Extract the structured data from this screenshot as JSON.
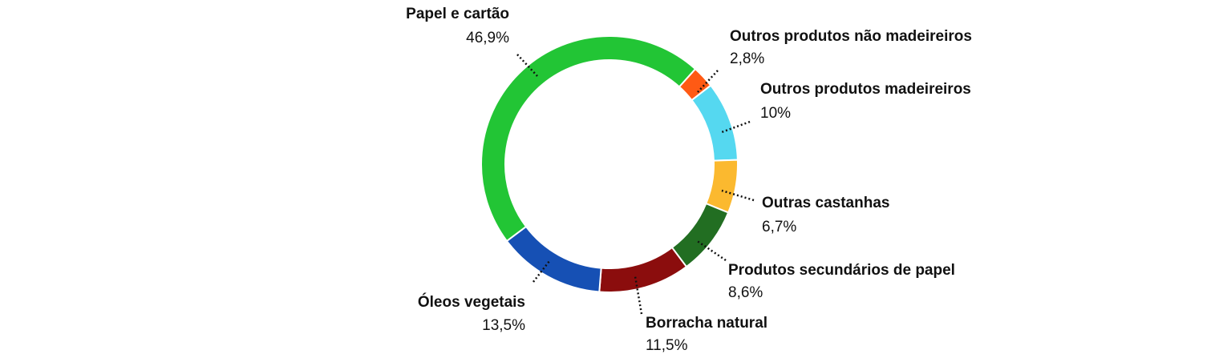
{
  "chart_data": {
    "type": "donut",
    "categories": [
      "Outros produtos não madeireiros",
      "Outros produtos madeireiros",
      "Outras castanhas",
      "Produtos secundários de papel",
      "Borracha natural",
      "Óleos vegetais",
      "Papel e cartão"
    ],
    "values": [
      2.8,
      10,
      6.7,
      8.6,
      11.5,
      13.5,
      46.9
    ],
    "value_labels": [
      "2,8%",
      "10%",
      "6,7%",
      "8,6%",
      "11,5%",
      "13,5%",
      "46,9%"
    ],
    "colors": [
      "#ff5a14",
      "#55d8f0",
      "#fbb92f",
      "#226e22",
      "#8b0d0d",
      "#1650b4",
      "#22c535"
    ]
  }
}
